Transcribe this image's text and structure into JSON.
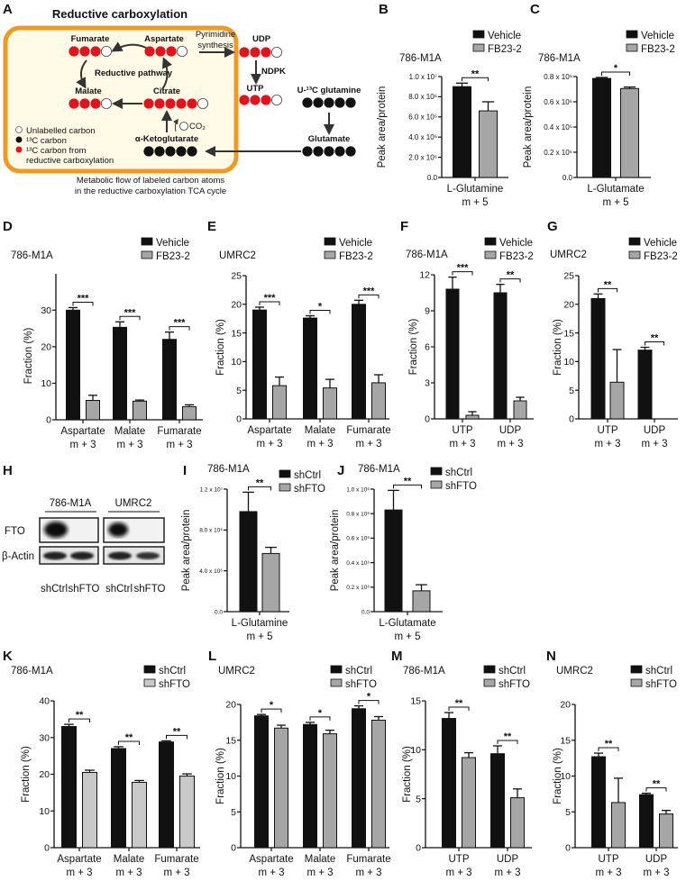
{
  "panel_letters": {
    "A": "A",
    "B": "B",
    "C": "C",
    "D": "D",
    "E": "E",
    "F": "F",
    "G": "G",
    "H": "H",
    "I": "I",
    "J": "J",
    "K": "K",
    "L": "L",
    "M": "M",
    "N": "N"
  },
  "diagram": {
    "title": "Reductive carboxylation",
    "border_color": "#f29a1f",
    "fill_color": "#fffbe6",
    "labeled_color": "#e3121b",
    "nodes": {
      "fumarate": {
        "label": "Fumarate",
        "carbons": "RRRW"
      },
      "aspartate": {
        "label": "Aspartate",
        "carbons": "RRRW"
      },
      "udp": {
        "label": "UDP",
        "carbons": "RRRW"
      },
      "utp": {
        "label": "UTP",
        "carbons": "RRRW"
      },
      "malate": {
        "label": "Malate",
        "carbons": "RRRW"
      },
      "citrate": {
        "label": "Citrate",
        "carbons": "RRRRRW"
      },
      "akg": {
        "label": "α-Ketoglutarate",
        "carbons": "BBBBB"
      },
      "glutamine": {
        "label": "U-¹³C glutamine",
        "carbons": "BBBBB"
      },
      "glutamate": {
        "label": "Glutamate",
        "carbons": "BBBBB"
      }
    },
    "pyrimidine_line1": "Pyrimidine",
    "pyrimidine_line2": "synthesis",
    "ndpk": "NDPK",
    "reductive_pathway": "Reductive pathway",
    "co2": "CO₂",
    "legend": [
      "Unlabelled carbon",
      "¹³C carbon",
      "¹³C carbon from",
      "reductive carboxylation"
    ],
    "caption": [
      "Metabolic flow of labeled carbon atoms",
      "in the reductive carboxylation TCA cycle"
    ]
  },
  "blot": {
    "cell_lines": [
      "786-M1A",
      "UMRC2"
    ],
    "rows": [
      "FTO",
      "β-Actin"
    ],
    "lanes": [
      "shCtrl",
      "shFTO",
      "shCtrl",
      "shFTO"
    ]
  },
  "chart_data": [
    {
      "id": "B",
      "type": "bar",
      "title": "786-M1A",
      "ylabel": "Peak area/protein",
      "ylim": [
        0,
        10000000
      ],
      "yticks": [
        0,
        2000000,
        4000000,
        6000000,
        8000000,
        10000000
      ],
      "ytick_labels": [
        "0.0",
        "2.0 x 10⁶",
        "4.0 x 10⁶",
        "6.0 x 10⁶",
        "8.0 x 10⁶",
        "1.0 x 10⁷"
      ],
      "categories": [
        [
          "L-Glutamine",
          "m + 5"
        ]
      ],
      "series": [
        {
          "name": "Vehicle",
          "color": "#111111",
          "values": [
            9000000
          ],
          "errors": [
            350000
          ]
        },
        {
          "name": "FB23-2",
          "color": "#a6a6a6",
          "values": [
            6600000
          ],
          "errors": [
            900000
          ]
        }
      ],
      "significance": [
        "**"
      ]
    },
    {
      "id": "C",
      "type": "bar",
      "title": "786-M1A",
      "ylabel": "Peak area/protein",
      "ylim": [
        0,
        800000
      ],
      "yticks": [
        0,
        200000,
        400000,
        600000,
        800000
      ],
      "ytick_labels": [
        "0.0",
        "0.2 x 10⁶",
        "0.4 x 10⁶",
        "0.6 x 10⁶",
        "0.8 x 10⁶"
      ],
      "categories": [
        [
          "L-Glutamate",
          "m + 5"
        ]
      ],
      "series": [
        {
          "name": "Vehicle",
          "color": "#111111",
          "values": [
            785000
          ],
          "errors": [
            8000
          ]
        },
        {
          "name": "FB23-2",
          "color": "#a6a6a6",
          "values": [
            705000
          ],
          "errors": [
            12000
          ]
        }
      ],
      "significance": [
        "*"
      ]
    },
    {
      "id": "D",
      "type": "bar",
      "title": "786-M1A",
      "ylabel": "Fraction (%)",
      "ylim": [
        0,
        35
      ],
      "yticks": [
        0,
        10,
        20,
        30
      ],
      "ytick_labels": [
        "0",
        "10",
        "20",
        "30"
      ],
      "categories": [
        [
          "Aspartate",
          "m + 3"
        ],
        [
          "Malate",
          "m + 3"
        ],
        [
          "Fumarate",
          "m + 3"
        ]
      ],
      "series": [
        {
          "name": "Vehicle",
          "color": "#111111",
          "values": [
            30.0,
            25.3,
            22.0
          ],
          "errors": [
            0.7,
            1.5,
            2.0
          ]
        },
        {
          "name": "FB23-2",
          "color": "#a6a6a6",
          "values": [
            5.3,
            5.1,
            3.6
          ],
          "errors": [
            1.4,
            0.3,
            0.5
          ]
        }
      ],
      "significance": [
        "***",
        "***",
        "***"
      ]
    },
    {
      "id": "E",
      "type": "bar",
      "title": "UMRC2",
      "ylabel": "Fraction (%)",
      "ylim": [
        0,
        25
      ],
      "yticks": [
        0,
        5,
        10,
        15,
        20,
        25
      ],
      "ytick_labels": [
        "0",
        "5",
        "10",
        "15",
        "20",
        "25"
      ],
      "categories": [
        [
          "Aspartate",
          "m + 3"
        ],
        [
          "Malate",
          "m + 3"
        ],
        [
          "Fumarate",
          "m + 3"
        ]
      ],
      "series": [
        {
          "name": "Vehicle",
          "color": "#111111",
          "values": [
            19.0,
            17.6,
            20.0
          ],
          "errors": [
            0.5,
            0.4,
            0.7
          ]
        },
        {
          "name": "FB23-2",
          "color": "#a6a6a6",
          "values": [
            5.8,
            5.4,
            6.3
          ],
          "errors": [
            1.5,
            1.5,
            1.4
          ]
        }
      ],
      "significance": [
        "***",
        "*",
        "***"
      ]
    },
    {
      "id": "F",
      "type": "bar",
      "title": "786-M1A",
      "ylabel": "Fraction (%)",
      "ylim": [
        0,
        12
      ],
      "yticks": [
        0,
        3,
        6,
        9,
        12
      ],
      "ytick_labels": [
        "0",
        "3",
        "6",
        "9",
        "12"
      ],
      "categories": [
        [
          "UTP",
          "m + 3"
        ],
        [
          "UDP",
          "m + 3"
        ]
      ],
      "series": [
        {
          "name": "Vehicle",
          "color": "#111111",
          "values": [
            10.8,
            10.5
          ],
          "errors": [
            1.0,
            0.7
          ]
        },
        {
          "name": "FB23-2",
          "color": "#a6a6a6",
          "values": [
            0.3,
            1.5
          ],
          "errors": [
            0.3,
            0.3
          ]
        }
      ],
      "significance": [
        "***",
        "**"
      ]
    },
    {
      "id": "G",
      "type": "bar",
      "title": "UMRC2",
      "ylabel": "Fraction (%)",
      "ylim": [
        0,
        25
      ],
      "yticks": [
        0,
        5,
        10,
        15,
        20,
        25
      ],
      "ytick_labels": [
        "0",
        "5",
        "10",
        "15",
        "20",
        "25"
      ],
      "categories": [
        [
          "UTP",
          "m + 3"
        ],
        [
          "UDP",
          "m + 3"
        ]
      ],
      "series": [
        {
          "name": "Vehicle",
          "color": "#111111",
          "values": [
            21.0,
            12.0
          ],
          "errors": [
            0.8,
            0.5
          ]
        },
        {
          "name": "FB23-2",
          "color": "#a6a6a6",
          "values": [
            6.4,
            0.0
          ],
          "errors": [
            5.7,
            0.0
          ]
        }
      ],
      "significance": [
        "**",
        "**"
      ]
    },
    {
      "id": "I",
      "type": "bar",
      "title": "786-M1A",
      "ylabel": "Peak area/protein",
      "ylim": [
        0,
        12000000
      ],
      "yticks": [
        0,
        4000000,
        8000000,
        12000000
      ],
      "ytick_labels": [
        "0.0",
        "4.0 x 10⁶",
        "8.0 x 10⁶",
        "1.2 x 10⁷"
      ],
      "categories": [
        [
          "L-Glutamine",
          "m + 5"
        ]
      ],
      "series": [
        {
          "name": "shCtrl",
          "color": "#111111",
          "values": [
            9800000
          ],
          "errors": [
            1900000
          ]
        },
        {
          "name": "shFTO",
          "color": "#a6a6a6",
          "values": [
            5700000
          ],
          "errors": [
            600000
          ]
        }
      ],
      "significance": [
        "**"
      ]
    },
    {
      "id": "J",
      "type": "bar",
      "title": "786-M1A",
      "ylabel": "Peak area/protein",
      "ylim": [
        0,
        1000000
      ],
      "yticks": [
        0,
        200000,
        400000,
        600000,
        800000,
        1000000
      ],
      "ytick_labels": [
        "0.0",
        "0.2 x 10⁶",
        "0.4 x 10⁶",
        "0.6 x 10⁶",
        "0.8 x 10⁶",
        "1.0 x 10⁶"
      ],
      "categories": [
        [
          "L-Glutamate",
          "m + 5"
        ]
      ],
      "series": [
        {
          "name": "shCtrl",
          "color": "#111111",
          "values": [
            830000
          ],
          "errors": [
            160000
          ]
        },
        {
          "name": "shFTO",
          "color": "#a6a6a6",
          "values": [
            170000
          ],
          "errors": [
            50000
          ]
        }
      ],
      "significance": [
        "**"
      ]
    },
    {
      "id": "K",
      "type": "bar",
      "title": "786-M1A",
      "ylabel": "Fraction (%)",
      "ylim": [
        0,
        40
      ],
      "yticks": [
        0,
        10,
        20,
        30,
        40
      ],
      "ytick_labels": [
        "0",
        "10",
        "20",
        "30",
        "40"
      ],
      "categories": [
        [
          "Aspartate",
          "m + 3"
        ],
        [
          "Malate",
          "m + 3"
        ],
        [
          "Fumarate",
          "m + 3"
        ]
      ],
      "series": [
        {
          "name": "shCtrl",
          "color": "#111111",
          "values": [
            33.0,
            27.0,
            28.8
          ],
          "errors": [
            0.6,
            0.5,
            0.3
          ]
        },
        {
          "name": "shFTO",
          "color": "#c9c9c9",
          "values": [
            20.5,
            17.8,
            19.5
          ],
          "errors": [
            0.6,
            0.5,
            0.6
          ]
        }
      ],
      "significance": [
        "**",
        "**",
        "**"
      ]
    },
    {
      "id": "L",
      "type": "bar",
      "title": "UMRC2",
      "ylabel": "Fraction (%)",
      "ylim": [
        0,
        20
      ],
      "yticks": [
        0,
        5,
        10,
        15,
        20
      ],
      "ytick_labels": [
        "0",
        "5",
        "10",
        "15",
        "20"
      ],
      "categories": [
        [
          "Aspartate",
          "m + 3"
        ],
        [
          "Malate",
          "m + 3"
        ],
        [
          "Fumarate",
          "m + 3"
        ]
      ],
      "series": [
        {
          "name": "shCtrl",
          "color": "#111111",
          "values": [
            18.4,
            17.2,
            19.4
          ],
          "errors": [
            0.2,
            0.3,
            0.4
          ]
        },
        {
          "name": "shFTO",
          "color": "#a6a6a6",
          "values": [
            16.7,
            15.9,
            17.8
          ],
          "errors": [
            0.4,
            0.5,
            0.5
          ]
        }
      ],
      "significance": [
        "*",
        "*",
        "*"
      ]
    },
    {
      "id": "M",
      "type": "bar",
      "title": "786-M1A",
      "ylabel": "Fraction (%)",
      "ylim": [
        0,
        15
      ],
      "yticks": [
        0,
        5,
        10,
        15
      ],
      "ytick_labels": [
        "0",
        "5",
        "10",
        "15"
      ],
      "categories": [
        [
          "UTP",
          "m + 3"
        ],
        [
          "UDP",
          "m + 3"
        ]
      ],
      "series": [
        {
          "name": "shCtrl",
          "color": "#111111",
          "values": [
            13.2,
            9.6
          ],
          "errors": [
            0.6,
            0.8
          ]
        },
        {
          "name": "shFTO",
          "color": "#a6a6a6",
          "values": [
            9.2,
            5.1
          ],
          "errors": [
            0.5,
            0.9
          ]
        }
      ],
      "significance": [
        "**",
        "**"
      ]
    },
    {
      "id": "N",
      "type": "bar",
      "title": "UMRC2",
      "ylabel": "Fraction (%)",
      "ylim": [
        0,
        20
      ],
      "yticks": [
        0,
        5,
        10,
        15,
        20
      ],
      "ytick_labels": [
        "0",
        "5",
        "10",
        "15",
        "20"
      ],
      "categories": [
        [
          "UTP",
          "m + 3"
        ],
        [
          "UDP",
          "m + 3"
        ]
      ],
      "series": [
        {
          "name": "shCtrl",
          "color": "#111111",
          "values": [
            12.7,
            7.4
          ],
          "errors": [
            0.5,
            0.2
          ]
        },
        {
          "name": "shFTO",
          "color": "#a6a6a6",
          "values": [
            6.3,
            4.7
          ],
          "errors": [
            3.4,
            0.5
          ]
        }
      ],
      "significance": [
        "**",
        "**"
      ]
    }
  ]
}
